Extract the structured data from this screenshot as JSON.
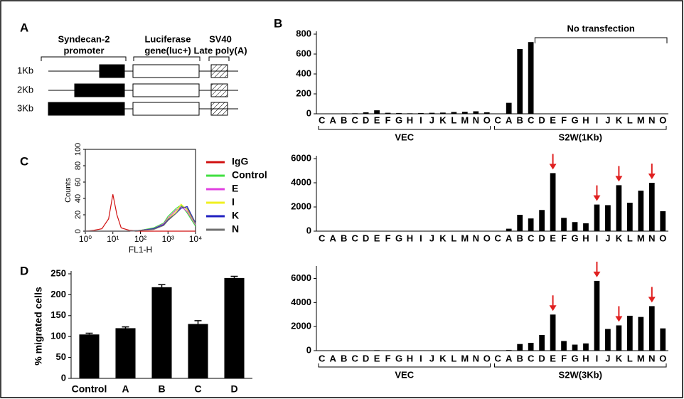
{
  "panel_labels": [
    "A",
    "B",
    "C",
    "D"
  ],
  "diagram": {
    "promoter": [
      "Syndecan-2",
      "promoter"
    ],
    "gene": [
      "Luciferase",
      "gene(luc+)"
    ],
    "polya": [
      "SV40",
      "Late poly(A)"
    ],
    "rows": [
      "1Kb",
      "2Kb",
      "3Kb"
    ]
  },
  "chart_data": [
    {
      "type": "bar",
      "color": "#000000",
      "categories": [
        "C",
        "A",
        "B",
        "C",
        "D",
        "E",
        "F",
        "G",
        "H",
        "I",
        "J",
        "K",
        "L",
        "M",
        "N",
        "O",
        "C",
        "A",
        "B",
        "C",
        "D",
        "E",
        "F",
        "G",
        "H",
        "I",
        "J",
        "K",
        "L",
        "M",
        "N",
        "O"
      ],
      "values": [
        2,
        3,
        4,
        5,
        15,
        35,
        10,
        8,
        5,
        8,
        10,
        12,
        18,
        20,
        25,
        15,
        0,
        110,
        650,
        720,
        0,
        0,
        0,
        0,
        0,
        0,
        0,
        0,
        0,
        0,
        0,
        0
      ],
      "ylim": [
        0,
        800
      ],
      "yticks": [
        0,
        200,
        400,
        600,
        800
      ],
      "groups": [
        "VEC",
        "S2W(1Kb)"
      ],
      "annotation": "No transfection"
    },
    {
      "type": "bar",
      "color": "#000000",
      "annotation_color": "#e02020",
      "categories": [
        "C",
        "A",
        "B",
        "C",
        "D",
        "E",
        "F",
        "G",
        "H",
        "I",
        "J",
        "K",
        "L",
        "M",
        "N",
        "O",
        "C",
        "A",
        "B",
        "C",
        "D",
        "E",
        "F",
        "G",
        "H",
        "I",
        "J",
        "K",
        "L",
        "M",
        "N",
        "O"
      ],
      "values": [
        5,
        5,
        5,
        5,
        10,
        20,
        5,
        5,
        5,
        5,
        5,
        5,
        5,
        10,
        30,
        10,
        0,
        200,
        1350,
        1050,
        1750,
        4800,
        1100,
        750,
        650,
        2200,
        2150,
        3800,
        2350,
        3350,
        4000,
        1650
      ],
      "ylim": [
        0,
        6000
      ],
      "yticks": [
        0,
        2000,
        4000,
        6000
      ]
    },
    {
      "type": "bar",
      "color": "#000000",
      "annotation_color": "#e02020",
      "categories": [
        "C",
        "A",
        "B",
        "C",
        "D",
        "E",
        "F",
        "G",
        "H",
        "I",
        "J",
        "K",
        "L",
        "M",
        "N",
        "O",
        "C",
        "A",
        "B",
        "C",
        "D",
        "E",
        "F",
        "G",
        "H",
        "I",
        "J",
        "K",
        "L",
        "M",
        "N",
        "O"
      ],
      "values": [
        5,
        5,
        5,
        5,
        10,
        40,
        5,
        5,
        5,
        5,
        5,
        5,
        5,
        10,
        10,
        5,
        0,
        50,
        550,
        650,
        1300,
        3000,
        800,
        500,
        600,
        5800,
        1800,
        2100,
        2900,
        2800,
        3700,
        1850
      ],
      "ylim": [
        0,
        6800
      ],
      "yticks": [
        0,
        2000,
        4000,
        6000
      ],
      "groups": [
        "VEC",
        "S2W(3Kb)"
      ]
    },
    {
      "type": "line",
      "xlabel": "FL1-H",
      "ylabel": "Counts",
      "xscale": "log",
      "x": [
        1,
        2,
        4,
        7,
        10,
        14,
        20,
        40,
        100,
        300,
        700,
        1000,
        2000,
        3000,
        5000,
        10000
      ],
      "xlim": [
        1,
        10000
      ],
      "xticks": [
        {
          "value": 1,
          "label": "10⁰"
        },
        {
          "value": 10,
          "label": "10¹"
        },
        {
          "value": 100,
          "label": "10²"
        },
        {
          "value": 1000,
          "label": "10³"
        },
        {
          "value": 10000,
          "label": "10⁴"
        }
      ],
      "ylim": [
        0,
        100
      ],
      "yticks": [
        0,
        20,
        40,
        60,
        80,
        100
      ],
      "series": [
        {
          "name": "IgG",
          "color": "#d01010",
          "values": [
            0,
            1,
            3,
            15,
            45,
            20,
            4,
            1,
            0,
            0,
            0,
            0,
            0,
            0,
            0,
            0
          ]
        },
        {
          "name": "Control",
          "color": "#40e040",
          "values": [
            0,
            0,
            0,
            0,
            0,
            0,
            0,
            0,
            1,
            4,
            10,
            18,
            28,
            32,
            22,
            6
          ]
        },
        {
          "name": "E",
          "color": "#e040e0",
          "values": [
            0,
            0,
            0,
            0,
            0,
            0,
            0,
            0,
            1,
            3,
            9,
            16,
            26,
            30,
            24,
            8
          ]
        },
        {
          "name": "I",
          "color": "#f0f020",
          "values": [
            0,
            0,
            0,
            0,
            0,
            0,
            0,
            0,
            1,
            3,
            8,
            15,
            24,
            33,
            26,
            9
          ]
        },
        {
          "name": "K",
          "color": "#2020c0",
          "values": [
            0,
            0,
            0,
            0,
            0,
            0,
            0,
            0,
            1,
            3,
            8,
            14,
            22,
            28,
            30,
            10
          ]
        },
        {
          "name": "N",
          "color": "#707070",
          "values": [
            0,
            0,
            0,
            0,
            0,
            0,
            0,
            0,
            1,
            2,
            7,
            13,
            22,
            30,
            28,
            9
          ]
        }
      ]
    },
    {
      "type": "bar",
      "color": "#000000",
      "ylabel": "% migrated cells",
      "categories": [
        "Control",
        "A",
        "B",
        "C",
        "D"
      ],
      "values": [
        105,
        120,
        218,
        130,
        240
      ],
      "errors": [
        3,
        3,
        6,
        8,
        4
      ],
      "ylim": [
        0,
        250
      ],
      "yticks": [
        0,
        50,
        100,
        150,
        200,
        250
      ]
    }
  ]
}
